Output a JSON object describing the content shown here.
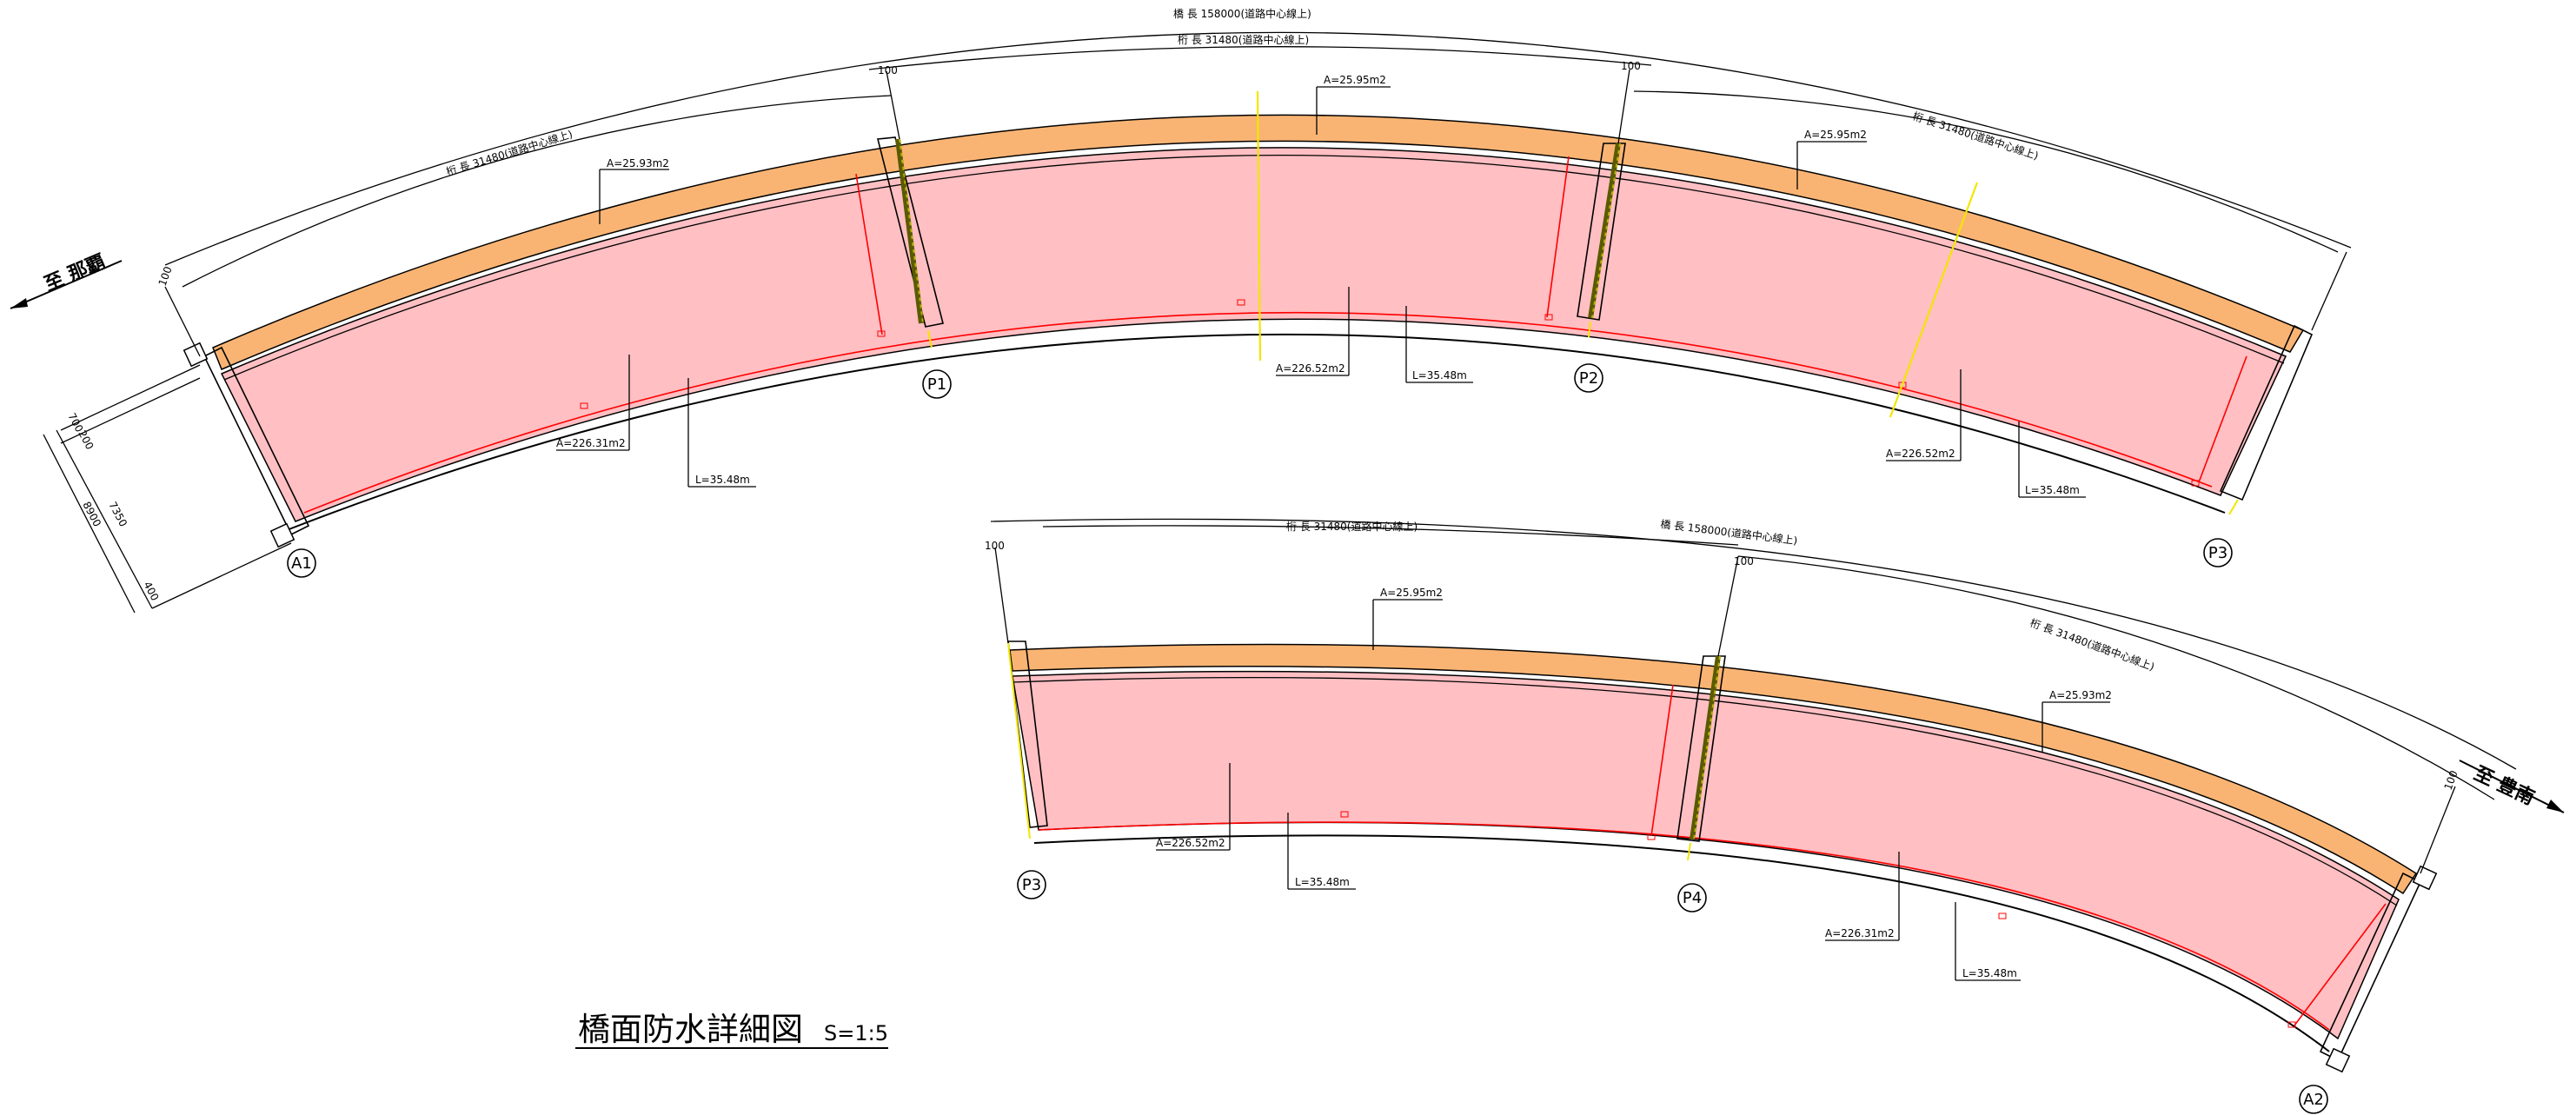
{
  "title": "橋面防水詳細図",
  "scale": "S=1:5",
  "direction_left": "至 那覇",
  "direction_right": "至 豊南",
  "bridge_length_label": "橋  長  158000(道路中心線上)",
  "span_labels": {
    "top_overall": "桁  長  31480(道路中心線上)",
    "span1": "桁  長  31480(道路中心線上)",
    "span3": "桁  長  31480(道路中心線上)",
    "lower_left": "桁  長  31480(道路中心線上)",
    "lower_right": "桁  長  31480(道路中心線上)"
  },
  "joint_labels": [
    "100",
    "100",
    "100",
    "100",
    "100",
    "100"
  ],
  "pier_labels": {
    "A1": "A1",
    "P1": "P1",
    "P2": "P2",
    "P3_top": "P3",
    "P3_bottom": "P3",
    "P4": "P4",
    "A2": "A2"
  },
  "areas": {
    "upper": [
      {
        "strip": "A=25.93m2",
        "deck": "A=226.31m2",
        "length": "L=35.48m"
      },
      {
        "strip": "A=25.95m2",
        "deck": "A=226.52m2",
        "length": "L=35.48m"
      },
      {
        "strip": "A=25.95m2",
        "deck": "A=226.52m2",
        "length": "L=35.48m"
      }
    ],
    "lower": [
      {
        "strip": "A=25.95m2",
        "deck": "A=226.52m2",
        "length": "L=35.48m"
      },
      {
        "strip": "A=25.93m2",
        "deck": "A=226.31m2",
        "length": "L=35.48m"
      }
    ]
  },
  "section_dims": {
    "d1": "700",
    "d2": "200",
    "d3": "8900",
    "d4": "7350",
    "d5": "400"
  },
  "colors": {
    "deck_fill": "#ffbfc3",
    "strip_fill": "#f9b474",
    "accent_line": "#ff0000",
    "center_line": "#f2e600"
  }
}
